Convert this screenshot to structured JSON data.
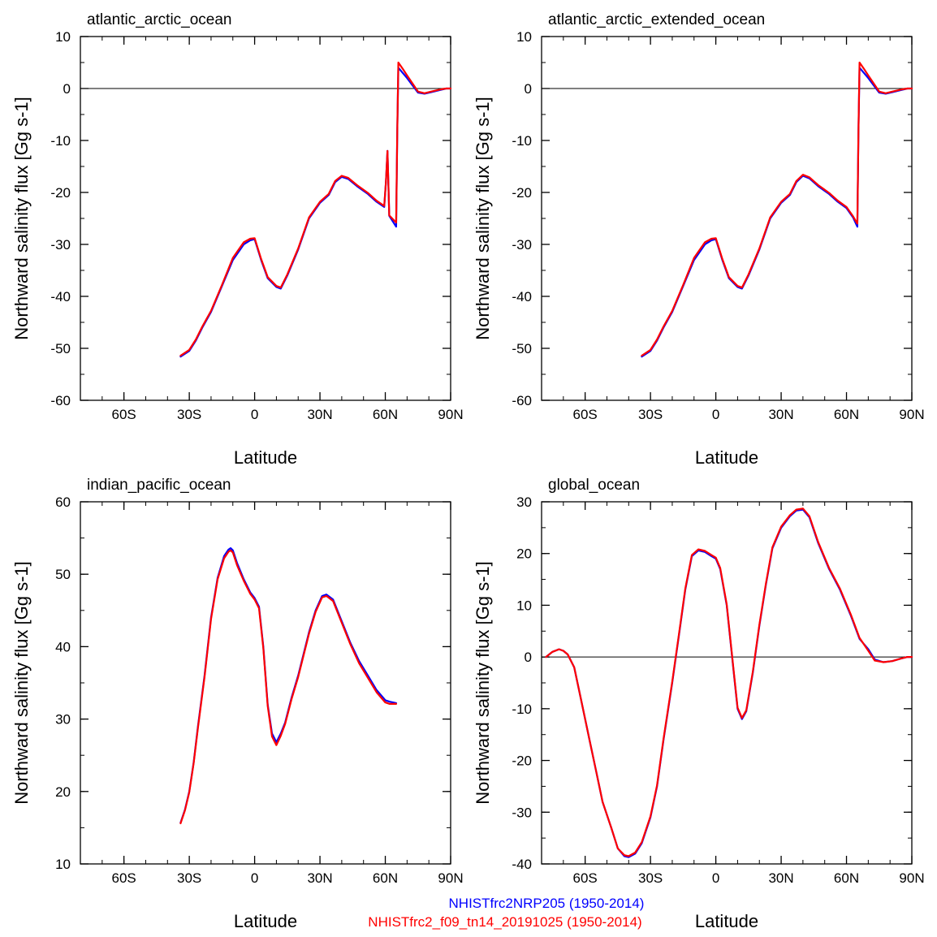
{
  "colors": {
    "series_a": "#0000ff",
    "series_b": "#ff0000",
    "axis": "#000000"
  },
  "legend": {
    "series_a": "NHISTfrc2NRP205 (1950-2014)",
    "series_b": "NHISTfrc2_f09_tn14_20191025 (1950-2014)"
  },
  "chart_data": [
    {
      "type": "line",
      "title": "atlantic_arctic_ocean",
      "xlabel": "Latitude",
      "ylabel": "Northward salinity flux [Gg s-1]",
      "xlim": [
        -80,
        90
      ],
      "ylim": [
        -60,
        10
      ],
      "xticks": [
        -60,
        -30,
        0,
        30,
        60,
        90
      ],
      "xticklabels": [
        "60S",
        "30S",
        "0",
        "30N",
        "60N",
        "90N"
      ],
      "yticks": [
        -60,
        -50,
        -40,
        -30,
        -20,
        -10,
        0,
        10
      ],
      "yticklabels": [
        "-60",
        "-50",
        "-40",
        "-30",
        "-20",
        "-10",
        "0",
        "10"
      ],
      "zero_line": true,
      "series": [
        {
          "name": "NHISTfrc2NRP205 (1950-2014)",
          "x": [
            -34,
            -30,
            -27,
            -24,
            -20,
            -15,
            -10,
            -5,
            -2,
            0,
            3,
            6,
            10,
            12,
            15,
            20,
            25,
            30,
            34,
            37,
            40,
            43,
            47,
            52,
            56,
            59.5,
            60.3,
            61,
            61.8,
            65,
            65.5,
            66,
            68,
            70,
            75,
            78,
            81,
            85,
            88,
            90
          ],
          "y": [
            -51.6,
            -50.5,
            -48.5,
            -46,
            -43,
            -38,
            -33,
            -30,
            -29.2,
            -29,
            -33,
            -36.5,
            -38.2,
            -38.5,
            -36,
            -31,
            -25,
            -22,
            -20.5,
            -18,
            -17,
            -17.4,
            -18.8,
            -20.3,
            -21.8,
            -22.8,
            -18,
            -12,
            -24.5,
            -26.6,
            -8,
            4,
            3,
            2,
            -0.8,
            -1,
            -0.7,
            -0.3,
            0,
            0
          ]
        },
        {
          "name": "NHISTfrc2_f09_tn14_20191025 (1950-2014)",
          "x": [
            -34,
            -30,
            -27,
            -24,
            -20,
            -15,
            -10,
            -5,
            -2,
            0,
            3,
            6,
            10,
            12,
            15,
            20,
            25,
            30,
            34,
            37,
            40,
            43,
            47,
            52,
            56,
            59.5,
            60.3,
            61,
            61.8,
            65,
            65.5,
            66,
            68,
            70,
            75,
            78,
            81,
            85,
            88,
            90
          ],
          "y": [
            -51.4,
            -50.3,
            -48.3,
            -45.8,
            -42.8,
            -37.8,
            -32.6,
            -29.6,
            -28.9,
            -28.8,
            -32.8,
            -36.3,
            -38,
            -38.3,
            -35.8,
            -30.8,
            -24.8,
            -21.8,
            -20.3,
            -17.8,
            -16.8,
            -17.2,
            -18.6,
            -20.1,
            -21.6,
            -22.6,
            -18,
            -12,
            -24.4,
            -25.8,
            -8,
            5,
            3.8,
            2.5,
            -0.6,
            -0.9,
            -0.6,
            -0.2,
            0,
            0
          ]
        }
      ]
    },
    {
      "type": "line",
      "title": "atlantic_arctic_extended_ocean",
      "xlabel": "Latitude",
      "ylabel": "Northward salinity flux [Gg s-1]",
      "xlim": [
        -80,
        90
      ],
      "ylim": [
        -60,
        10
      ],
      "xticks": [
        -60,
        -30,
        0,
        30,
        60,
        90
      ],
      "xticklabels": [
        "60S",
        "30S",
        "0",
        "30N",
        "60N",
        "90N"
      ],
      "yticks": [
        -60,
        -50,
        -40,
        -30,
        -20,
        -10,
        0,
        10
      ],
      "yticklabels": [
        "-60",
        "-50",
        "-40",
        "-30",
        "-20",
        "-10",
        "0",
        "10"
      ],
      "zero_line": true,
      "series": [
        {
          "name": "NHISTfrc2NRP205 (1950-2014)",
          "x": [
            -34,
            -30,
            -27,
            -24,
            -20,
            -15,
            -10,
            -5,
            -2,
            0,
            3,
            6,
            10,
            12,
            15,
            20,
            25,
            30,
            34,
            37,
            40,
            43,
            47,
            52,
            56,
            60,
            63,
            65,
            65.5,
            66,
            68,
            70,
            75,
            78,
            81,
            85,
            88,
            90
          ],
          "y": [
            -51.6,
            -50.5,
            -48.5,
            -46,
            -43,
            -38,
            -33,
            -30,
            -29.2,
            -29,
            -33,
            -36.5,
            -38.2,
            -38.5,
            -36,
            -31,
            -25,
            -22,
            -20.5,
            -18,
            -16.8,
            -17.3,
            -18.8,
            -20.3,
            -21.8,
            -23,
            -24.8,
            -26.6,
            -8,
            4,
            3,
            2,
            -0.8,
            -1,
            -0.7,
            -0.3,
            0,
            0
          ]
        },
        {
          "name": "NHISTfrc2_f09_tn14_20191025 (1950-2014)",
          "x": [
            -34,
            -30,
            -27,
            -24,
            -20,
            -15,
            -10,
            -5,
            -2,
            0,
            3,
            6,
            10,
            12,
            15,
            20,
            25,
            30,
            34,
            37,
            40,
            43,
            47,
            52,
            56,
            60,
            63,
            65,
            65.5,
            66,
            68,
            70,
            75,
            78,
            81,
            85,
            88,
            90
          ],
          "y": [
            -51.4,
            -50.3,
            -48.3,
            -45.8,
            -42.8,
            -37.8,
            -32.6,
            -29.6,
            -28.9,
            -28.8,
            -32.8,
            -36.3,
            -38,
            -38.3,
            -35.8,
            -30.8,
            -24.8,
            -21.8,
            -20.3,
            -17.8,
            -16.6,
            -17.1,
            -18.6,
            -20.1,
            -21.6,
            -22.8,
            -24.6,
            -26,
            -8,
            5,
            3.8,
            2.5,
            -0.6,
            -0.9,
            -0.6,
            -0.2,
            0,
            0
          ]
        }
      ]
    },
    {
      "type": "line",
      "title": "indian_pacific_ocean",
      "xlabel": "Latitude",
      "ylabel": "Northward salinity flux [Gg s-1]",
      "xlim": [
        -80,
        90
      ],
      "ylim": [
        10,
        60
      ],
      "xticks": [
        -60,
        -30,
        0,
        30,
        60,
        90
      ],
      "xticklabels": [
        "60S",
        "30S",
        "0",
        "30N",
        "60N",
        "90N"
      ],
      "yticks": [
        10,
        20,
        30,
        40,
        50,
        60
      ],
      "yticklabels": [
        "10",
        "20",
        "30",
        "40",
        "50",
        "60"
      ],
      "zero_line": false,
      "series": [
        {
          "name": "NHISTfrc2NRP205 (1950-2014)",
          "x": [
            -34,
            -32,
            -30,
            -28,
            -26,
            -23,
            -20,
            -17,
            -14,
            -12,
            -11,
            -10,
            -8,
            -5,
            -2,
            0,
            2,
            4,
            6,
            8,
            10,
            12,
            14,
            17,
            20,
            25,
            28,
            31,
            33,
            36,
            40,
            44,
            48,
            52,
            56,
            60,
            62,
            65
          ],
          "y": [
            15.7,
            17.5,
            20,
            24,
            29,
            36,
            44,
            49.5,
            52.5,
            53.4,
            53.6,
            53.3,
            51.5,
            49.3,
            47.5,
            46.7,
            45.5,
            40,
            32,
            28,
            26.8,
            28,
            29.5,
            33,
            36,
            42,
            45,
            47,
            47.2,
            46.5,
            43.5,
            40.5,
            38,
            36,
            34,
            32.6,
            32.4,
            32.2
          ]
        },
        {
          "name": "NHISTfrc2_f09_tn14_20191025 (1950-2014)",
          "x": [
            -34,
            -32,
            -30,
            -28,
            -26,
            -23,
            -20,
            -17,
            -14,
            -12,
            -11,
            -10,
            -8,
            -5,
            -2,
            0,
            2,
            4,
            6,
            8,
            10,
            12,
            14,
            17,
            20,
            25,
            28,
            31,
            33,
            36,
            40,
            44,
            48,
            52,
            56,
            60,
            62,
            65
          ],
          "y": [
            15.6,
            17.4,
            19.9,
            23.9,
            28.8,
            35.8,
            43.8,
            49.3,
            52.2,
            53.1,
            53.3,
            53,
            51.2,
            49.1,
            47.3,
            46.5,
            45.3,
            39.8,
            31.8,
            27.6,
            26.4,
            27.7,
            29.3,
            32.8,
            35.8,
            41.8,
            44.8,
            46.8,
            47,
            46.3,
            43.3,
            40.3,
            37.7,
            35.7,
            33.7,
            32.3,
            32.1,
            32.1
          ]
        }
      ]
    },
    {
      "type": "line",
      "title": "global_ocean",
      "xlabel": "Latitude",
      "ylabel": "Northward salinity flux [Gg s-1]",
      "xlim": [
        -80,
        90
      ],
      "ylim": [
        -40,
        30
      ],
      "xticks": [
        -60,
        -30,
        0,
        30,
        60,
        90
      ],
      "xticklabels": [
        "60S",
        "30S",
        "0",
        "30N",
        "60N",
        "90N"
      ],
      "yticks": [
        -40,
        -30,
        -20,
        -10,
        0,
        10,
        20,
        30
      ],
      "yticklabels": [
        "-40",
        "-30",
        "-20",
        "-10",
        "0",
        "10",
        "20",
        "30"
      ],
      "zero_line": true,
      "series": [
        {
          "name": "NHISTfrc2NRP205 (1950-2014)",
          "x": [
            -78,
            -75,
            -72,
            -70,
            -68,
            -65,
            -62,
            -58,
            -55,
            -52,
            -48,
            -45,
            -42,
            -40,
            -37,
            -34,
            -30,
            -27,
            -24,
            -20,
            -17,
            -14,
            -11,
            -8,
            -5,
            -2,
            0,
            2,
            5,
            8,
            10,
            12,
            14,
            17,
            20,
            23,
            26,
            30,
            34,
            37,
            40,
            43,
            47,
            52,
            57,
            62,
            66,
            70,
            73,
            77,
            81,
            85,
            88,
            90
          ],
          "y": [
            0,
            1,
            1.5,
            1.2,
            0.5,
            -2,
            -8,
            -16,
            -22,
            -28,
            -33,
            -37,
            -38.5,
            -38.7,
            -38,
            -36,
            -31,
            -25,
            -16,
            -5,
            4,
            13,
            19.5,
            20.6,
            20.3,
            19.5,
            19,
            17,
            10,
            -2,
            -10,
            -12,
            -10.5,
            -3,
            6,
            14,
            21,
            25,
            27.2,
            28.3,
            28.5,
            27,
            22,
            17,
            13,
            8,
            3.5,
            1.5,
            -0.5,
            -1,
            -0.8,
            -0.3,
            0,
            0
          ]
        },
        {
          "name": "NHISTfrc2_f09_tn14_20191025 (1950-2014)",
          "x": [
            -78,
            -75,
            -72,
            -70,
            -68,
            -65,
            -62,
            -58,
            -55,
            -52,
            -48,
            -45,
            -42,
            -40,
            -37,
            -34,
            -30,
            -27,
            -24,
            -20,
            -17,
            -14,
            -11,
            -8,
            -5,
            -2,
            0,
            2,
            5,
            8,
            10,
            12,
            14,
            17,
            20,
            23,
            26,
            30,
            34,
            37,
            40,
            43,
            47,
            52,
            57,
            62,
            66,
            70,
            73,
            77,
            81,
            85,
            88,
            90
          ],
          "y": [
            0,
            1,
            1.5,
            1.2,
            0.5,
            -2,
            -8,
            -16,
            -22,
            -28,
            -33,
            -37,
            -38.3,
            -38.5,
            -37.8,
            -35.8,
            -30.8,
            -24.8,
            -15.8,
            -4.8,
            4.2,
            13.2,
            19.7,
            20.8,
            20.5,
            19.7,
            19.2,
            17.2,
            10.2,
            -1.8,
            -9.8,
            -11.8,
            -10.3,
            -2.8,
            6.2,
            14.2,
            21.2,
            25.2,
            27.4,
            28.5,
            28.7,
            27.2,
            22.2,
            17.2,
            13.2,
            8.2,
            3.7,
            1.2,
            -0.7,
            -1,
            -0.8,
            -0.3,
            0,
            0
          ]
        }
      ]
    }
  ]
}
